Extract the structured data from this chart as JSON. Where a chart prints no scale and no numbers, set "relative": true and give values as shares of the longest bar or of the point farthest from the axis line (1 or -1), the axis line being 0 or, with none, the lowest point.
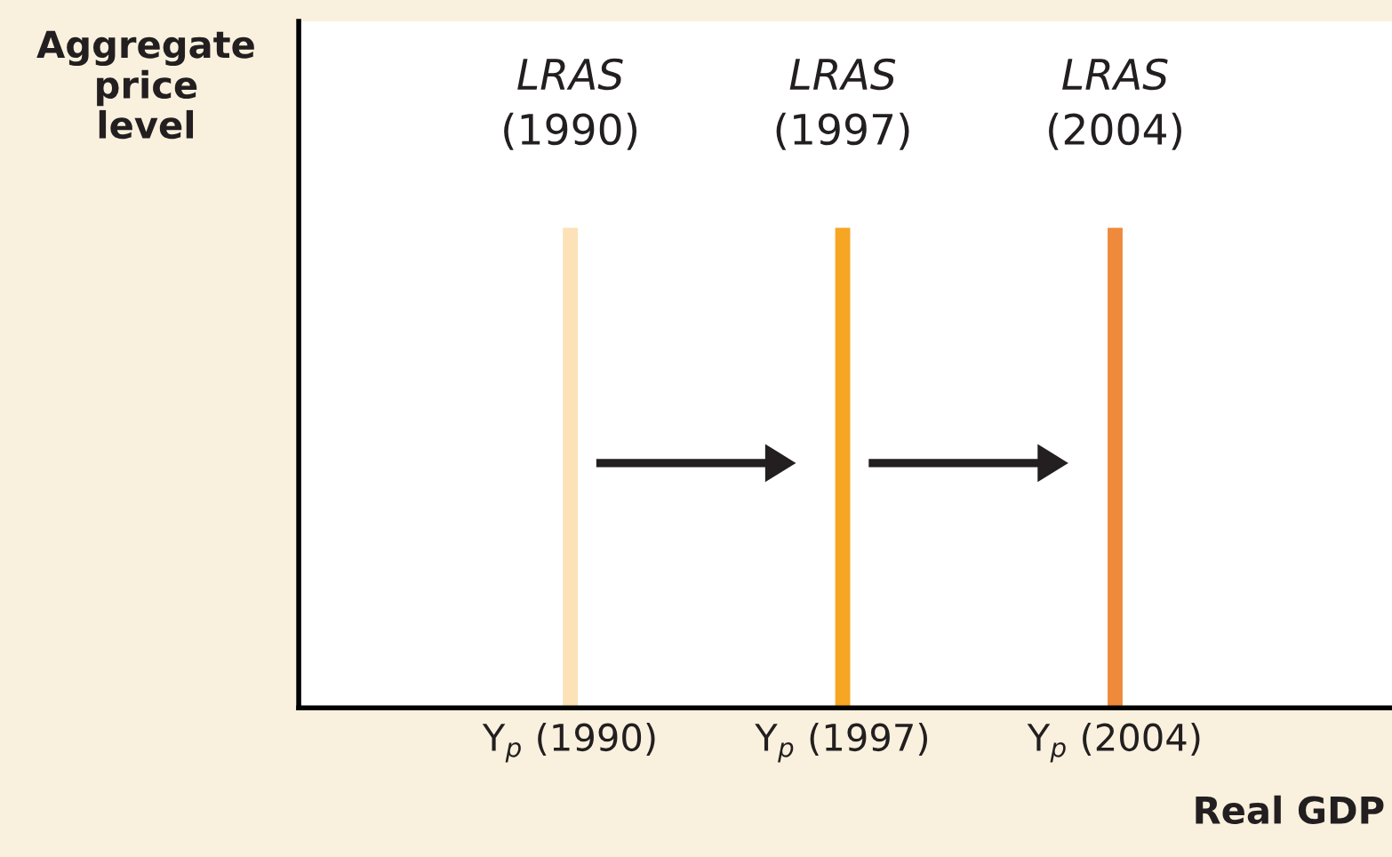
{
  "chart_data": {
    "type": "bar",
    "relative": true,
    "categories": [
      "Y$_{p}$ (1990)",
      "Y$_{p}$ (1997)",
      "Y$_{p}$ (2004)"
    ],
    "values": [
      1,
      1,
      1
    ],
    "colors": [
      "#fde2b8",
      "#f6a623",
      "#ef8a3c"
    ],
    "xlabel": "Real GDP",
    "ylabel": "Aggregate\nprice\nlevel",
    "annotations": [
      {
        "text": "LRAS\n(1990)",
        "x": "Y$_{p}$ (1990)",
        "y": 1
      },
      {
        "text": "LRAS\n(1997)",
        "x": "Y$_{p}$ (1997)",
        "y": 1
      },
      {
        "text": "LRAS\n(2004)",
        "x": "Y$_{p}$ (2004)",
        "y": 1
      }
    ],
    "tick_labels": "x",
    "grid": false,
    "legend": false
  }
}
